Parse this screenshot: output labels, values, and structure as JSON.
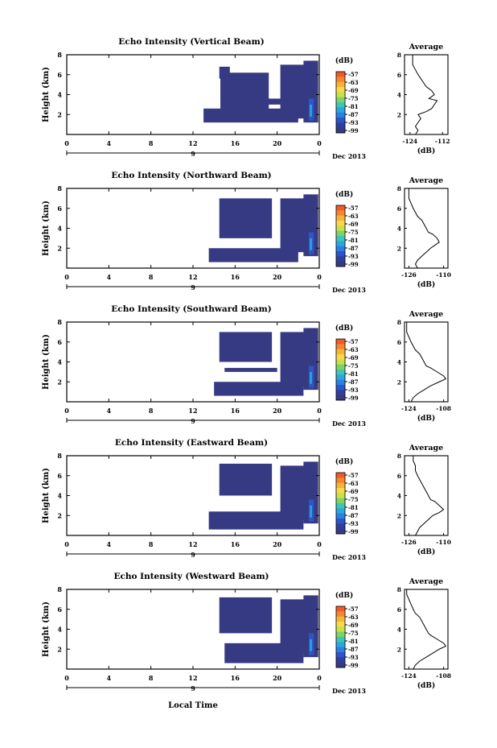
{
  "footer": {
    "xaxis_label": "Local Time"
  },
  "colorbar": {
    "unit": "(dB)",
    "ticks": [
      "-57",
      "-63",
      "-69",
      "-75",
      "-81",
      "-87",
      "-93",
      "-99"
    ],
    "colors": [
      "#f05a2a",
      "#f3862f",
      "#f7b23a",
      "#f9d84a",
      "#c8e04a",
      "#7dd36a",
      "#3fc4b6",
      "#2aa7e0",
      "#2b7fe0",
      "#2c55c8",
      "#2f3f9e",
      "#363a82"
    ]
  },
  "colors": {
    "echo_fill": "#363a82",
    "echo_core": "#2c55c8",
    "echo_peak": "#2aa7e0",
    "axis": "#000000"
  },
  "panels": [
    {
      "title": "Echo Intensity (Vertical Beam)",
      "ylabel": "Height (km)",
      "date_label": "Dec 2013",
      "day_label": "9"
    },
    {
      "title": "Echo Intensity (Northward Beam)",
      "ylabel": "Height (km)",
      "date_label": "Dec 2013",
      "day_label": "9"
    },
    {
      "title": "Echo Intensity (Southward Beam)",
      "ylabel": "Height (km)",
      "date_label": "Dec 2013",
      "day_label": "9"
    },
    {
      "title": "Echo Intensity (Eastward Beam)",
      "ylabel": "Height (km)",
      "date_label": "Dec 2013",
      "day_label": "9"
    },
    {
      "title": "Echo Intensity (Westward Beam)",
      "ylabel": "Height (km)",
      "date_label": "Dec 2013",
      "day_label": "9"
    }
  ],
  "chart_data": [
    {
      "type": "heatmap",
      "title": "Echo Intensity (Vertical Beam)",
      "xlabel": "",
      "ylabel": "Height (km)",
      "x_ticks": [
        "0",
        "4",
        "8",
        "12",
        "16",
        "20",
        "0"
      ],
      "y_ticks": [
        "2",
        "4",
        "6",
        "8"
      ],
      "xlim": [
        0,
        24
      ],
      "ylim": [
        0,
        8
      ],
      "colorbar_label": "(dB)",
      "echo_regions": [
        {
          "hours": [
            14.5,
            15.5
          ],
          "km": [
            5.6,
            6.8
          ]
        },
        {
          "hours": [
            14.6,
            19.2
          ],
          "km": [
            2.2,
            6.2
          ]
        },
        {
          "hours": [
            20.3,
            22.6
          ],
          "km": [
            1.6,
            7.0
          ]
        },
        {
          "hours": [
            22.5,
            23.9
          ],
          "km": [
            1.2,
            7.4
          ]
        },
        {
          "hours": [
            13.0,
            22.0
          ],
          "km": [
            1.2,
            2.6
          ]
        },
        {
          "hours": [
            16.5,
            20.5
          ],
          "km": [
            3.0,
            3.6
          ]
        }
      ]
    },
    {
      "type": "line",
      "title": "Average",
      "xlabel": "(dB)",
      "ylabel": "",
      "x_ticks": [
        "-124",
        "-112"
      ],
      "y_ticks": [
        "2",
        "4",
        "6",
        "8"
      ],
      "xlim": [
        -126,
        -110
      ],
      "ylim": [
        0,
        8
      ],
      "series": [
        {
          "x": [
            -122,
            -121,
            -122,
            -121,
            -120,
            -121,
            -118,
            -116,
            -115,
            -114,
            -117,
            -115,
            -116,
            -118,
            -119,
            -120,
            -121,
            -122,
            -123,
            -123,
            -123
          ],
          "y": [
            0,
            0.4,
            0.8,
            1.2,
            1.6,
            2.0,
            2.3,
            2.6,
            3.0,
            3.4,
            3.6,
            4.0,
            4.4,
            4.8,
            5.2,
            5.6,
            6.0,
            6.5,
            7.0,
            7.5,
            8.0
          ]
        }
      ]
    },
    {
      "type": "heatmap",
      "title": "Echo Intensity (Northward Beam)",
      "xlabel": "",
      "ylabel": "Height (km)",
      "x_ticks": [
        "0",
        "4",
        "8",
        "12",
        "16",
        "20",
        "0"
      ],
      "y_ticks": [
        "2",
        "4",
        "6",
        "8"
      ],
      "xlim": [
        0,
        24
      ],
      "ylim": [
        0,
        8
      ],
      "colorbar_label": "(dB)",
      "echo_regions": [
        {
          "hours": [
            14.5,
            19.5
          ],
          "km": [
            3.0,
            7.0
          ]
        },
        {
          "hours": [
            20.3,
            22.6
          ],
          "km": [
            1.6,
            7.0
          ]
        },
        {
          "hours": [
            22.5,
            23.9
          ],
          "km": [
            1.2,
            7.4
          ]
        },
        {
          "hours": [
            13.5,
            22.0
          ],
          "km": [
            0.6,
            2.0
          ]
        }
      ]
    },
    {
      "type": "line",
      "title": "Average",
      "xlabel": "(dB)",
      "ylabel": "",
      "x_ticks": [
        "-126",
        "-110"
      ],
      "y_ticks": [
        "2",
        "4",
        "6",
        "8"
      ],
      "xlim": [
        -128,
        -108
      ],
      "ylim": [
        0,
        8
      ],
      "series": [
        {
          "x": [
            -122,
            -123,
            -122,
            -120,
            -118,
            -116,
            -114,
            -112,
            -113,
            -115,
            -117,
            -118,
            -119,
            -120,
            -122,
            -123,
            -124,
            -125,
            -126,
            -126,
            -126
          ],
          "y": [
            0,
            0.4,
            0.8,
            1.2,
            1.6,
            2.0,
            2.3,
            2.6,
            3.0,
            3.4,
            3.6,
            4.0,
            4.4,
            4.8,
            5.2,
            5.6,
            6.0,
            6.5,
            7.0,
            7.5,
            8.0
          ]
        }
      ]
    },
    {
      "type": "heatmap",
      "title": "Echo Intensity (Southward Beam)",
      "xlabel": "",
      "ylabel": "Height (km)",
      "x_ticks": [
        "0",
        "4",
        "8",
        "12",
        "16",
        "20",
        "0"
      ],
      "y_ticks": [
        "2",
        "4",
        "6",
        "8"
      ],
      "xlim": [
        0,
        24
      ],
      "ylim": [
        0,
        8
      ],
      "colorbar_label": "(dB)",
      "echo_regions": [
        {
          "hours": [
            14.5,
            19.5
          ],
          "km": [
            4.0,
            7.0
          ]
        },
        {
          "hours": [
            20.3,
            22.6
          ],
          "km": [
            1.6,
            7.0
          ]
        },
        {
          "hours": [
            22.5,
            23.9
          ],
          "km": [
            1.2,
            7.4
          ]
        },
        {
          "hours": [
            14.0,
            22.5
          ],
          "km": [
            0.6,
            2.0
          ]
        },
        {
          "hours": [
            15.0,
            20.0
          ],
          "km": [
            3.0,
            3.4
          ]
        }
      ]
    },
    {
      "type": "line",
      "title": "Average",
      "xlabel": "(dB)",
      "ylabel": "",
      "x_ticks": [
        "-124",
        "-108"
      ],
      "y_ticks": [
        "2",
        "4",
        "6",
        "8"
      ],
      "xlim": [
        -126,
        -106
      ],
      "ylim": [
        0,
        8
      ],
      "series": [
        {
          "x": [
            -123,
            -122,
            -120,
            -117,
            -114,
            -110,
            -107,
            -108,
            -111,
            -114,
            -116,
            -117,
            -118,
            -119,
            -121,
            -122,
            -123,
            -124,
            -125,
            -125,
            -125
          ],
          "y": [
            0,
            0.4,
            0.8,
            1.2,
            1.6,
            2.0,
            2.3,
            2.6,
            3.0,
            3.4,
            3.6,
            4.0,
            4.4,
            4.8,
            5.2,
            5.6,
            6.0,
            6.5,
            7.0,
            7.5,
            8.0
          ]
        }
      ]
    },
    {
      "type": "heatmap",
      "title": "Echo Intensity (Eastward Beam)",
      "xlabel": "",
      "ylabel": "Height (km)",
      "x_ticks": [
        "0",
        "4",
        "8",
        "12",
        "16",
        "20",
        "0"
      ],
      "y_ticks": [
        "2",
        "4",
        "6",
        "8"
      ],
      "xlim": [
        0,
        24
      ],
      "ylim": [
        0,
        8
      ],
      "colorbar_label": "(dB)",
      "echo_regions": [
        {
          "hours": [
            14.5,
            19.5
          ],
          "km": [
            4.0,
            7.2
          ]
        },
        {
          "hours": [
            20.3,
            22.6
          ],
          "km": [
            1.6,
            7.0
          ]
        },
        {
          "hours": [
            22.5,
            23.9
          ],
          "km": [
            1.2,
            7.4
          ]
        },
        {
          "hours": [
            13.5,
            22.5
          ],
          "km": [
            0.6,
            2.4
          ]
        }
      ]
    },
    {
      "type": "line",
      "title": "Average",
      "xlabel": "(dB)",
      "ylabel": "",
      "x_ticks": [
        "-126",
        "-110"
      ],
      "y_ticks": [
        "2",
        "4",
        "6",
        "8"
      ],
      "xlim": [
        -128,
        -108
      ],
      "ylim": [
        0,
        8
      ],
      "series": [
        {
          "x": [
            -123,
            -122,
            -121,
            -119,
            -117,
            -115,
            -112,
            -110,
            -112,
            -114,
            -116,
            -117,
            -118,
            -119,
            -120,
            -121,
            -122,
            -123,
            -123,
            -124,
            -124
          ],
          "y": [
            0,
            0.4,
            0.8,
            1.2,
            1.6,
            2.0,
            2.3,
            2.6,
            3.0,
            3.4,
            3.6,
            4.0,
            4.4,
            4.8,
            5.2,
            5.6,
            6.0,
            6.5,
            7.0,
            7.5,
            8.0
          ]
        }
      ]
    },
    {
      "type": "heatmap",
      "title": "Echo Intensity (Westward Beam)",
      "xlabel": "Local Time",
      "ylabel": "Height (km)",
      "x_ticks": [
        "0",
        "4",
        "8",
        "12",
        "16",
        "20",
        "0"
      ],
      "y_ticks": [
        "2",
        "4",
        "6",
        "8"
      ],
      "xlim": [
        0,
        24
      ],
      "ylim": [
        0,
        8
      ],
      "colorbar_label": "(dB)",
      "echo_regions": [
        {
          "hours": [
            14.5,
            19.5
          ],
          "km": [
            3.6,
            7.2
          ]
        },
        {
          "hours": [
            20.3,
            22.6
          ],
          "km": [
            1.6,
            7.0
          ]
        },
        {
          "hours": [
            22.5,
            23.9
          ],
          "km": [
            1.2,
            7.4
          ]
        },
        {
          "hours": [
            15.0,
            22.5
          ],
          "km": [
            0.6,
            2.6
          ]
        }
      ]
    },
    {
      "type": "line",
      "title": "Average",
      "xlabel": "(dB)",
      "ylabel": "",
      "x_ticks": [
        "-124",
        "-108"
      ],
      "y_ticks": [
        "2",
        "4",
        "6",
        "8"
      ],
      "xlim": [
        -126,
        -106
      ],
      "ylim": [
        0,
        8
      ],
      "series": [
        {
          "x": [
            -122,
            -121,
            -119,
            -116,
            -113,
            -110,
            -107,
            -108,
            -111,
            -114,
            -115,
            -116,
            -117,
            -118,
            -119,
            -121,
            -122,
            -123,
            -124,
            -125,
            -125
          ],
          "y": [
            0,
            0.4,
            0.8,
            1.2,
            1.6,
            2.0,
            2.3,
            2.6,
            3.0,
            3.4,
            3.6,
            4.0,
            4.4,
            4.8,
            5.2,
            5.6,
            6.0,
            6.5,
            7.0,
            7.5,
            8.0
          ]
        }
      ]
    }
  ]
}
